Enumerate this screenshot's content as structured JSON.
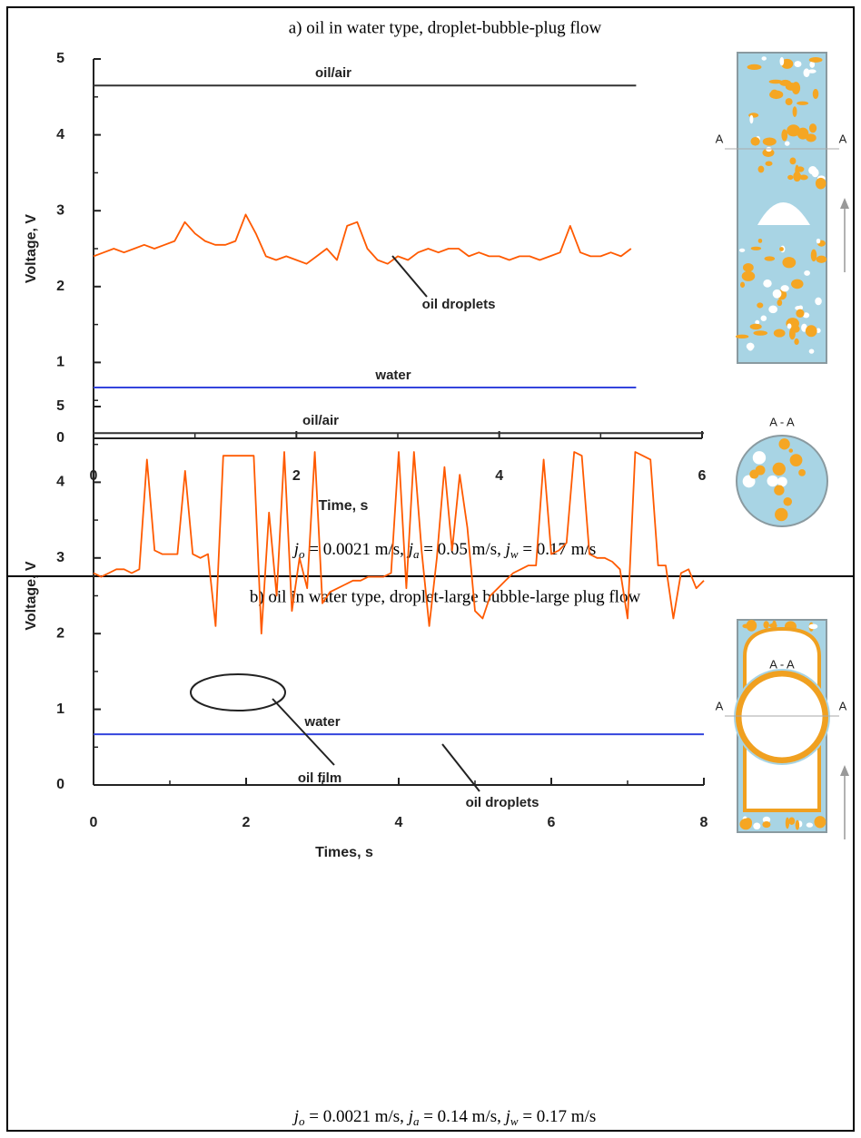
{
  "chart_data": [
    {
      "type": "line",
      "title": "a) oil in water type, droplet-bubble-plug flow",
      "xlabel": "Time, s",
      "ylabel": "Voltage, V",
      "xlim": [
        0,
        6
      ],
      "ylim": [
        0,
        5
      ],
      "xticks": [
        0,
        2,
        4,
        6
      ],
      "yticks": [
        0,
        1,
        2,
        3,
        4,
        5
      ],
      "xminorticks": [
        1,
        3,
        5
      ],
      "yminorticks": [
        0.5,
        1.5,
        2.5,
        3.5,
        4.5
      ],
      "series": [
        {
          "name": "oil/air",
          "color": "#333333",
          "x": [
            0,
            5.35
          ],
          "values": [
            4.65,
            4.65
          ]
        },
        {
          "name": "water",
          "color": "#3344dd",
          "x": [
            0,
            5.35
          ],
          "values": [
            0.67,
            0.67
          ]
        },
        {
          "color": "#ff5a00",
          "x": [
            0,
            0.1,
            0.2,
            0.3,
            0.4,
            0.5,
            0.6,
            0.7,
            0.8,
            0.9,
            1.0,
            1.1,
            1.2,
            1.3,
            1.4,
            1.5,
            1.6,
            1.7,
            1.8,
            1.9,
            2.0,
            2.1,
            2.2,
            2.3,
            2.4,
            2.5,
            2.6,
            2.7,
            2.8,
            2.9,
            3.0,
            3.1,
            3.2,
            3.3,
            3.4,
            3.5,
            3.6,
            3.7,
            3.8,
            3.9,
            4.0,
            4.1,
            4.2,
            4.3,
            4.4,
            4.5,
            4.6,
            4.7,
            4.8,
            4.9,
            5.0,
            5.1,
            5.2,
            5.3
          ],
          "values": [
            2.4,
            2.45,
            2.5,
            2.45,
            2.5,
            2.55,
            2.5,
            2.55,
            2.6,
            2.85,
            2.7,
            2.6,
            2.55,
            2.55,
            2.6,
            2.95,
            2.7,
            2.4,
            2.35,
            2.4,
            2.35,
            2.3,
            2.4,
            2.5,
            2.35,
            2.8,
            2.85,
            2.5,
            2.35,
            2.3,
            2.4,
            2.35,
            2.45,
            2.5,
            2.45,
            2.5,
            2.5,
            2.4,
            2.45,
            2.4,
            2.4,
            2.35,
            2.4,
            2.4,
            2.35,
            2.4,
            2.45,
            2.8,
            2.45,
            2.4,
            2.4,
            2.45,
            2.4,
            2.5
          ]
        }
      ],
      "annotations": [
        "oil droplets"
      ],
      "section_labels": [
        "A",
        "A",
        "A - A"
      ],
      "caption": [
        {
          "var": "j",
          "sub": "o"
        },
        {
          "text": " = 0.0021 m/s, "
        },
        {
          "var": "j",
          "sub": "a"
        },
        {
          "text": " = 0.05 m/s, "
        },
        {
          "var": "j",
          "sub": "w"
        },
        {
          "text": " = 0.17 m/s"
        }
      ]
    },
    {
      "type": "line",
      "title": "b) oil in water type, droplet-large bubble-large plug flow",
      "xlabel": "Times, s",
      "ylabel": "Voltage, V",
      "xlim": [
        0,
        8
      ],
      "ylim": [
        0,
        5
      ],
      "xticks": [
        0,
        2,
        4,
        6,
        8
      ],
      "yticks": [
        0,
        1,
        2,
        3,
        4,
        5
      ],
      "xminorticks": [
        1,
        3,
        5,
        7
      ],
      "yminorticks": [
        0.5,
        1.5,
        2.5,
        3.5,
        4.5
      ],
      "series": [
        {
          "name": "oil/air",
          "color": "#333333",
          "x": [
            0,
            8
          ],
          "values": [
            4.65,
            4.65
          ]
        },
        {
          "name": "water",
          "color": "#3344dd",
          "x": [
            0,
            8
          ],
          "values": [
            0.67,
            0.67
          ]
        },
        {
          "color": "#ff5a00",
          "x": [
            0,
            0.1,
            0.2,
            0.3,
            0.4,
            0.5,
            0.6,
            0.7,
            0.8,
            0.9,
            1.0,
            1.1,
            1.2,
            1.3,
            1.4,
            1.5,
            1.6,
            1.7,
            1.8,
            1.9,
            2.0,
            2.1,
            2.2,
            2.3,
            2.4,
            2.5,
            2.6,
            2.7,
            2.8,
            2.9,
            3.0,
            3.1,
            3.2,
            3.3,
            3.4,
            3.5,
            3.6,
            3.7,
            3.8,
            3.9,
            4.0,
            4.1,
            4.2,
            4.3,
            4.4,
            4.5,
            4.6,
            4.7,
            4.8,
            4.9,
            5.0,
            5.1,
            5.2,
            5.3,
            5.4,
            5.5,
            5.6,
            5.7,
            5.8,
            5.9,
            6.0,
            6.1,
            6.2,
            6.3,
            6.4,
            6.5,
            6.6,
            6.7,
            6.8,
            6.9,
            7.0,
            7.1,
            7.2,
            7.3,
            7.4,
            7.5,
            7.6,
            7.7,
            7.8,
            7.9,
            8.0
          ],
          "values": [
            2.8,
            2.75,
            2.8,
            2.85,
            2.85,
            2.8,
            2.85,
            4.3,
            3.1,
            3.05,
            3.05,
            3.05,
            4.15,
            3.05,
            3.0,
            3.05,
            2.1,
            4.35,
            4.35,
            4.35,
            4.35,
            4.35,
            2.0,
            3.6,
            2.5,
            4.4,
            2.3,
            3.0,
            2.6,
            4.4,
            2.4,
            2.55,
            2.6,
            2.65,
            2.7,
            2.7,
            2.75,
            2.75,
            2.75,
            2.8,
            4.4,
            2.6,
            4.4,
            3.1,
            2.1,
            3.0,
            4.2,
            3.1,
            4.1,
            3.4,
            2.3,
            2.2,
            2.5,
            2.6,
            2.7,
            2.8,
            2.85,
            2.9,
            2.9,
            4.3,
            3.05,
            3.1,
            3.2,
            4.4,
            4.35,
            3.05,
            3.0,
            3.0,
            2.95,
            2.85,
            2.2,
            4.4,
            4.35,
            4.3,
            2.9,
            2.9,
            2.2,
            2.8,
            2.85,
            2.6,
            2.7
          ]
        }
      ],
      "annotations": [
        "oil film",
        "oil droplets"
      ],
      "section_labels": [
        "A",
        "A",
        "A - A"
      ],
      "caption": [
        {
          "var": "j",
          "sub": "o"
        },
        {
          "text": " = 0.0021 m/s, "
        },
        {
          "var": "j",
          "sub": "a"
        },
        {
          "text": " = 0.14 m/s, "
        },
        {
          "var": "j",
          "sub": "w"
        },
        {
          "text": " = 0.17 m/s"
        }
      ]
    }
  ]
}
